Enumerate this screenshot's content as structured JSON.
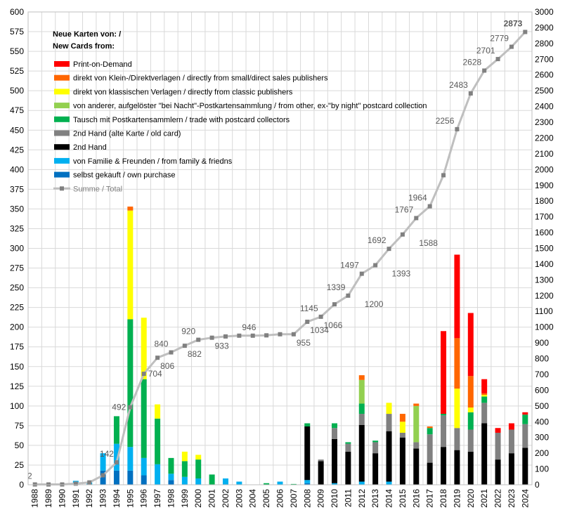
{
  "chart_data": {
    "type": "bar",
    "legend_title": "Neue Karten von: /",
    "legend_title2": "New Cards from:",
    "categories": [
      "1988",
      "1989",
      "1990",
      "1991",
      "1992",
      "1993",
      "1994",
      "1995",
      "1996",
      "1997",
      "1998",
      "1999",
      "2000",
      "2001",
      "2002",
      "2003",
      "2004",
      "2005",
      "2006",
      "2007",
      "2008",
      "2009",
      "2010",
      "2011",
      "2012",
      "2013",
      "2014",
      "2015",
      "2016",
      "2017",
      "2018",
      "2019",
      "2020",
      "2021",
      "2022",
      "2023",
      "2024"
    ],
    "left_axis": {
      "min": 0,
      "max": 600,
      "step": 25
    },
    "right_axis": {
      "min": 0,
      "max": 3000,
      "step": 100
    },
    "grid": true,
    "legend_position": "top-left",
    "series": [
      {
        "name": "selbst gekauft / own purchase",
        "color": "#0070c0",
        "values": [
          0,
          0,
          0,
          0,
          0,
          18,
          18,
          18,
          12,
          0,
          6,
          0,
          0,
          0,
          0,
          0,
          0,
          0,
          0,
          0,
          2,
          0,
          0,
          0,
          0,
          0,
          0,
          0,
          0,
          0,
          0,
          0,
          0,
          0,
          0,
          0,
          0
        ]
      },
      {
        "name": "von Familie & Freunden / from family & friedns",
        "color": "#00b0f0",
        "values": [
          0,
          0,
          0,
          5,
          3,
          22,
          34,
          30,
          22,
          26,
          8,
          10,
          8,
          0,
          8,
          4,
          0,
          0,
          4,
          0,
          4,
          0,
          2,
          0,
          4,
          0,
          4,
          0,
          0,
          0,
          0,
          0,
          0,
          0,
          0,
          0,
          0
        ]
      },
      {
        "name": "2nd Hand",
        "color": "#000000",
        "values": [
          0,
          0,
          0,
          0,
          0,
          0,
          0,
          0,
          0,
          0,
          0,
          0,
          0,
          0,
          0,
          0,
          0,
          0,
          0,
          0,
          68,
          30,
          56,
          42,
          72,
          40,
          64,
          60,
          46,
          28,
          48,
          44,
          42,
          78,
          32,
          40,
          47
        ]
      },
      {
        "name": "2nd Hand (alte Karte / old card)",
        "color": "#808080",
        "values": [
          0,
          0,
          0,
          0,
          0,
          0,
          0,
          0,
          0,
          0,
          0,
          0,
          0,
          0,
          0,
          0,
          0,
          0,
          0,
          0,
          0,
          2,
          14,
          10,
          14,
          14,
          22,
          6,
          8,
          36,
          40,
          28,
          28,
          26,
          34,
          30,
          30
        ]
      },
      {
        "name": "Tausch mit Postkartensammlern / trade with postcard collectors",
        "color": "#00b050",
        "values": [
          0,
          0,
          0,
          0,
          0,
          0,
          35,
          162,
          100,
          58,
          20,
          20,
          24,
          13,
          0,
          0,
          0,
          2,
          0,
          1,
          4,
          0,
          6,
          2,
          13,
          2,
          0,
          0,
          0,
          8,
          2,
          0,
          22,
          8,
          0,
          0,
          12
        ]
      },
      {
        "name": "von anderer, aufgelöster \"bei Nacht\"-Postkartensammlung / from other, ex-\"by night\" postcard collection",
        "color": "#92d050",
        "values": [
          0,
          0,
          0,
          0,
          0,
          0,
          0,
          0,
          0,
          0,
          0,
          0,
          0,
          0,
          0,
          0,
          0,
          0,
          0,
          0,
          0,
          0,
          0,
          0,
          30,
          0,
          0,
          0,
          46,
          0,
          0,
          0,
          0,
          0,
          0,
          0,
          0
        ]
      },
      {
        "name": "direkt von klassischen Verlagen / directly from classic publishers",
        "color": "#ffff00",
        "values": [
          0,
          0,
          0,
          0,
          0,
          0,
          0,
          138,
          78,
          18,
          0,
          12,
          6,
          0,
          0,
          0,
          0,
          0,
          0,
          0,
          0,
          0,
          0,
          0,
          0,
          0,
          14,
          14,
          0,
          0,
          0,
          50,
          6,
          2,
          0,
          0,
          0
        ]
      },
      {
        "name": "direkt von Klein-/Direktverlagen / directly from small/direct sales publishers",
        "color": "#ff6600",
        "values": [
          0,
          0,
          0,
          0,
          0,
          0,
          0,
          5,
          0,
          0,
          0,
          0,
          0,
          0,
          0,
          0,
          0,
          0,
          0,
          0,
          0,
          0,
          0,
          0,
          6,
          0,
          0,
          10,
          3,
          2,
          0,
          64,
          40,
          2,
          0,
          0,
          0
        ]
      },
      {
        "name": "Print-on-Demand",
        "color": "#ff0000",
        "values": [
          0,
          0,
          0,
          0,
          0,
          0,
          0,
          0,
          0,
          0,
          0,
          0,
          0,
          0,
          0,
          0,
          0,
          0,
          0,
          0,
          0,
          0,
          0,
          0,
          0,
          0,
          0,
          0,
          0,
          0,
          105,
          106,
          80,
          18,
          6,
          8,
          3
        ]
      }
    ],
    "total_series": {
      "name": "Summe / Total",
      "color": "#bfbfbf",
      "axis": "right",
      "values": [
        2,
        2,
        2,
        7,
        15,
        60,
        142,
        492,
        704,
        806,
        840,
        882,
        920,
        933,
        941,
        946,
        946,
        948,
        955,
        955,
        1034,
        1066,
        1145,
        1200,
        1339,
        1393,
        1497,
        1588,
        1692,
        1767,
        1964,
        2256,
        2483,
        2628,
        2701,
        2779,
        2873
      ]
    },
    "point_labels": [
      {
        "year": "1988",
        "text": "2",
        "pos": "above-left"
      },
      {
        "year": "1994",
        "text": "142",
        "pos": "above-left"
      },
      {
        "year": "1995",
        "text": "492",
        "pos": "left"
      },
      {
        "year": "1996",
        "text": "704",
        "pos": "right"
      },
      {
        "year": "1997",
        "text": "806",
        "pos": "below-right"
      },
      {
        "year": "1998",
        "text": "840",
        "pos": "above-left"
      },
      {
        "year": "1999",
        "text": "882",
        "pos": "below-right"
      },
      {
        "year": "2000",
        "text": "920",
        "pos": "above-left"
      },
      {
        "year": "2001",
        "text": "933",
        "pos": "below-right"
      },
      {
        "year": "2003",
        "text": "946",
        "pos": "above-right"
      },
      {
        "year": "2007",
        "text": "955",
        "pos": "below-right"
      },
      {
        "year": "2008",
        "text": "1034",
        "pos": "below-right"
      },
      {
        "year": "2009",
        "text": "1145",
        "pos": "above-left"
      },
      {
        "year": "2009",
        "text": "1066",
        "pos": "below-right",
        "y_value": 1066
      },
      {
        "year": "2011",
        "text": "1339",
        "pos": "above-left"
      },
      {
        "year": "2012",
        "text": "1200",
        "pos": "below-right",
        "y_value": 1200
      },
      {
        "year": "2012",
        "text": "1497",
        "pos": "above-left"
      },
      {
        "year": "2014",
        "text": "1393",
        "pos": "below-right",
        "y_value": 1393
      },
      {
        "year": "2014",
        "text": "1692",
        "pos": "above-left"
      },
      {
        "year": "2016",
        "text": "1588",
        "pos": "below-right",
        "y_value": 1588
      },
      {
        "year": "2016",
        "text": "1767",
        "pos": "above-left"
      },
      {
        "year": "2017",
        "text": "1964",
        "pos": "above-left"
      },
      {
        "year": "2019",
        "text": "2256",
        "pos": "above-left"
      },
      {
        "year": "2020",
        "text": "2483",
        "pos": "above-left"
      },
      {
        "year": "2021",
        "text": "2628",
        "pos": "above-left"
      },
      {
        "year": "2022",
        "text": "2701",
        "pos": "above-left"
      },
      {
        "year": "2023",
        "text": "2779",
        "pos": "above-left"
      },
      {
        "year": "2024",
        "text": "2873",
        "pos": "above-left",
        "bold": true
      }
    ]
  }
}
